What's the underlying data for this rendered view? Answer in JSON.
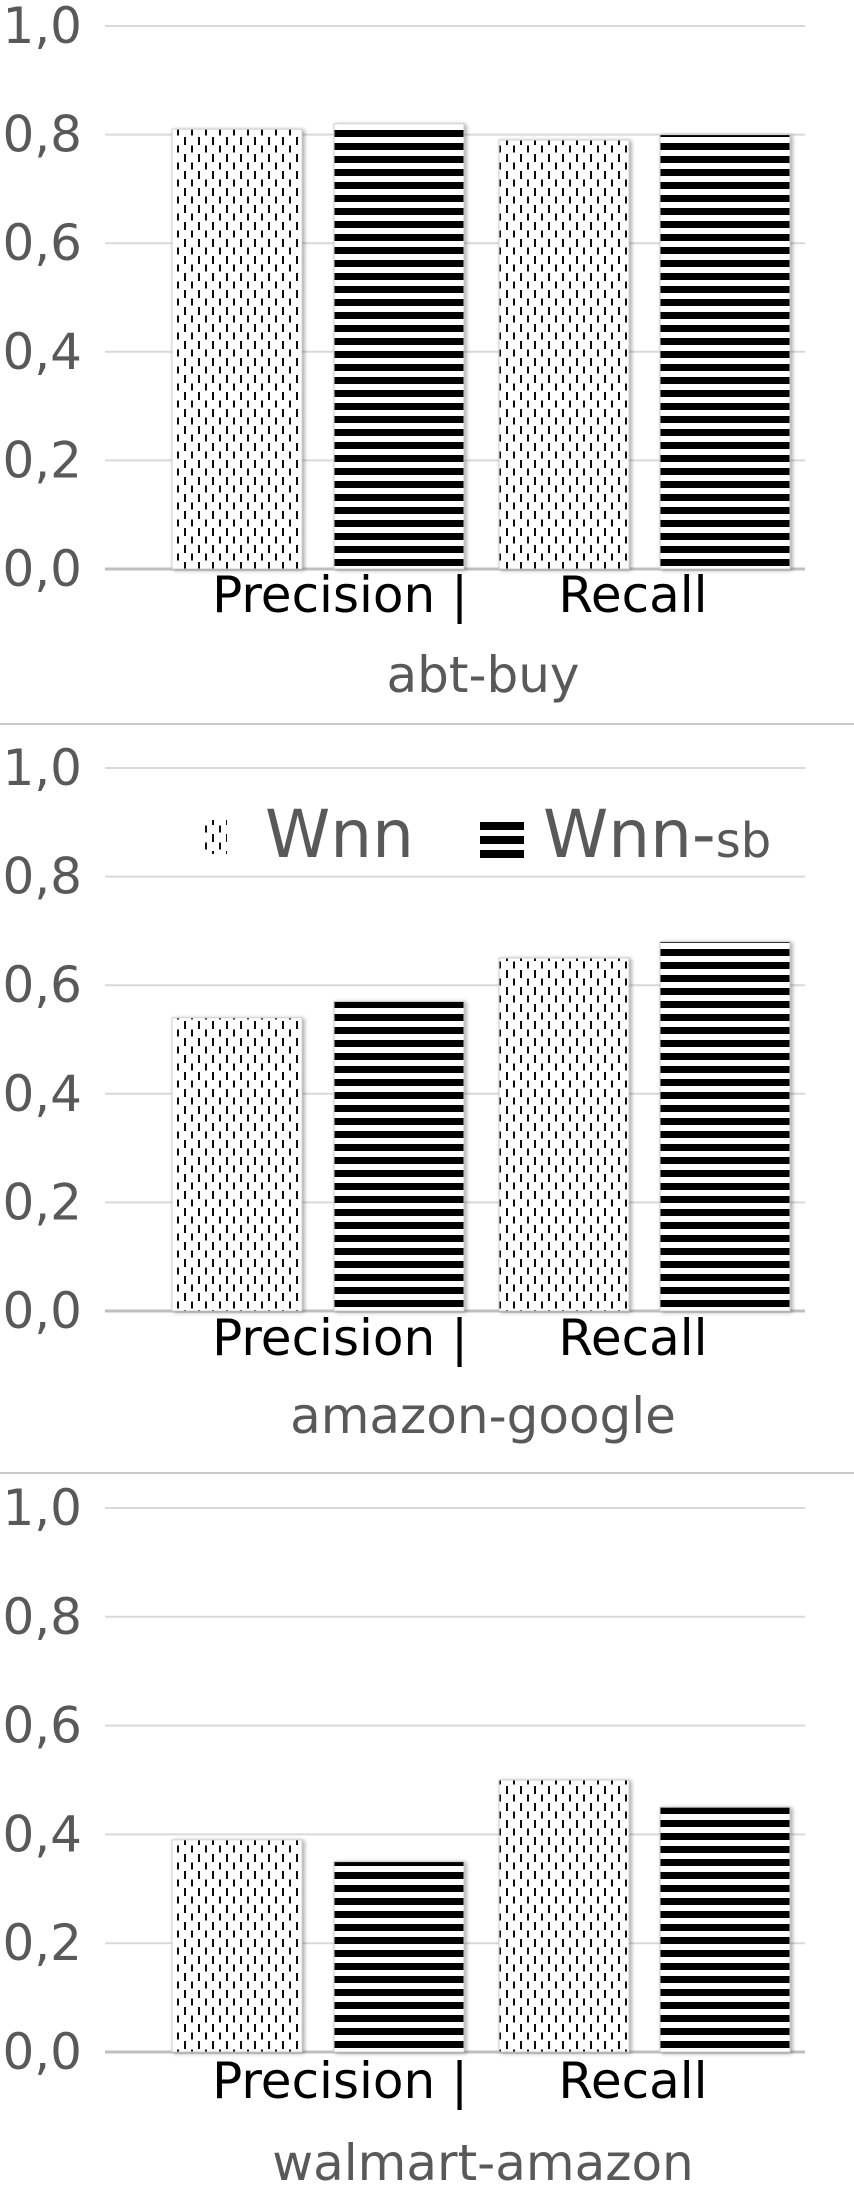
{
  "legend": {
    "items": [
      {
        "label": "Wnn",
        "label_sub": "",
        "pattern": "dashed-vertical"
      },
      {
        "label": "Wnn-",
        "label_sub": "sb",
        "pattern": "horizontal-stripes"
      }
    ]
  },
  "chart_data": [
    {
      "type": "bar",
      "title": "",
      "xlabel": "abt-buy",
      "ylabel": "",
      "category_text": [
        "Precision |",
        "Recall"
      ],
      "categories": [
        "Precision",
        "Recall"
      ],
      "ylim": [
        0,
        1.0
      ],
      "yticks": [
        "0,0",
        "0,2",
        "0,4",
        "0,6",
        "0,8",
        "1,0"
      ],
      "grid": true,
      "legend_position": "none",
      "series": [
        {
          "name": "Wnn",
          "values": [
            0.81,
            0.79
          ]
        },
        {
          "name": "Wnn-sb",
          "values": [
            0.82,
            0.8
          ]
        }
      ]
    },
    {
      "type": "bar",
      "title": "",
      "xlabel": "amazon-google",
      "ylabel": "",
      "category_text": [
        "Precision |",
        "Recall"
      ],
      "categories": [
        "Precision",
        "Recall"
      ],
      "ylim": [
        0,
        1.0
      ],
      "yticks": [
        "0,0",
        "0,2",
        "0,4",
        "0,6",
        "0,8",
        "1,0"
      ],
      "grid": true,
      "legend_position": "top",
      "series": [
        {
          "name": "Wnn",
          "values": [
            0.54,
            0.65
          ]
        },
        {
          "name": "Wnn-sb",
          "values": [
            0.57,
            0.68
          ]
        }
      ]
    },
    {
      "type": "bar",
      "title": "",
      "xlabel": "walmart-amazon",
      "ylabel": "",
      "category_text": [
        "Precision |",
        "Recall"
      ],
      "categories": [
        "Precision",
        "Recall"
      ],
      "ylim": [
        0,
        1.0
      ],
      "yticks": [
        "0,0",
        "0,2",
        "0,4",
        "0,6",
        "0,8",
        "1,0"
      ],
      "grid": true,
      "legend_position": "none",
      "series": [
        {
          "name": "Wnn",
          "values": [
            0.39,
            0.5
          ]
        },
        {
          "name": "Wnn-sb",
          "values": [
            0.35,
            0.45
          ]
        }
      ]
    }
  ]
}
